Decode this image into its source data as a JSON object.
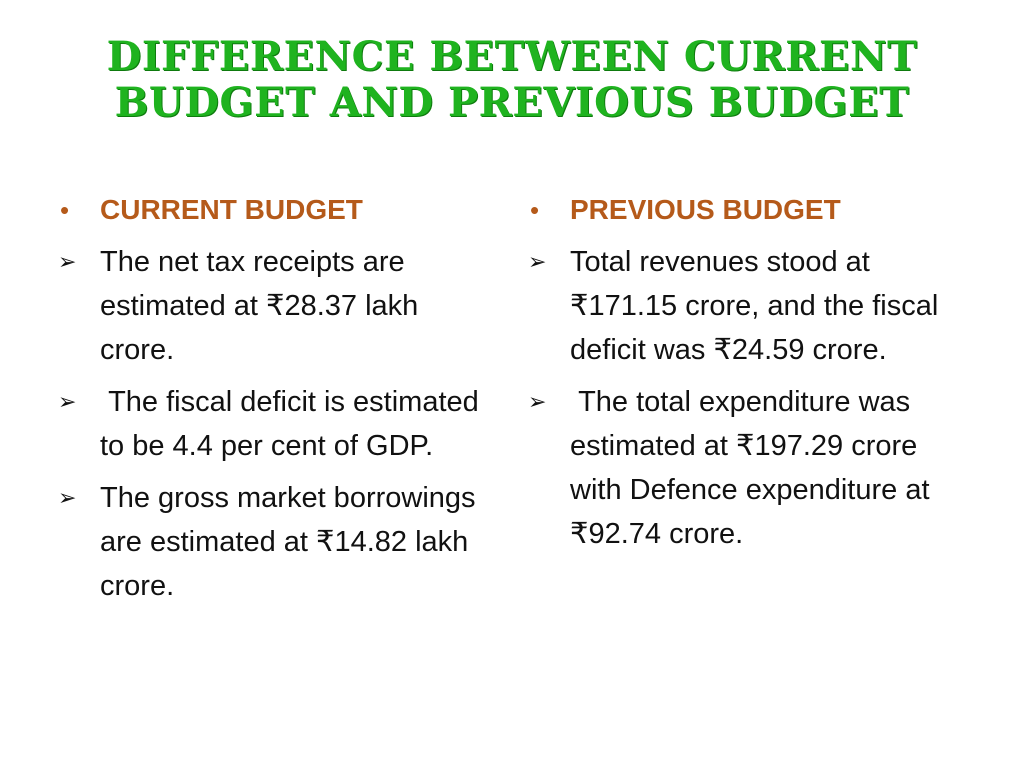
{
  "title": "DIFFERENCE BETWEEN CURRENT BUDGET AND PREVIOUS BUDGET",
  "left": {
    "heading": "CURRENT BUDGET",
    "items": [
      "The net tax receipts are estimated at ₹28.37 lakh crore.",
      " The fiscal deficit is estimated to be 4.4 per cent of GDP.",
      "The gross market borrowings are estimated at ₹14.82 lakh crore."
    ]
  },
  "right": {
    "heading": "PREVIOUS BUDGET",
    "items": [
      "Total revenues stood at ₹171.15 crore, and the fiscal deficit was ₹24.59 crore.",
      " The total expenditure was estimated at ₹197.29 crore with Defence expenditure at ₹92.74 crore."
    ]
  },
  "glyphs": {
    "bullet": "•",
    "arrow": "➢"
  },
  "colors": {
    "title": "#1fb31f",
    "heading": "#b55a1a",
    "body": "#111111"
  }
}
